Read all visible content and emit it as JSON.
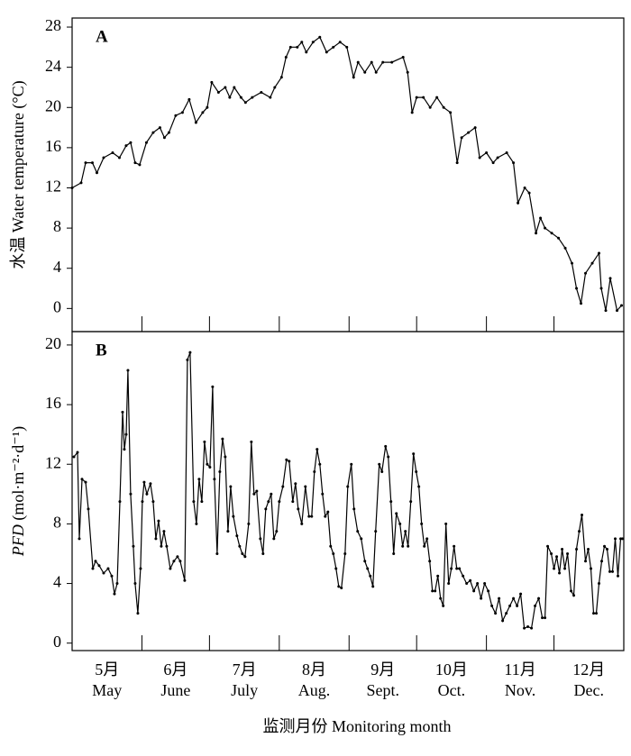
{
  "chart_data": [
    {
      "type": "line",
      "panel": "A",
      "ylabel": "水温 Water temperature (°C)",
      "color": "#000000",
      "xlim": [
        0,
        245
      ],
      "xticks": [
        31,
        61,
        92,
        123,
        153,
        184,
        214
      ],
      "ylim": [
        -2.3,
        28.9
      ],
      "yticks": [
        0,
        4,
        8,
        12,
        16,
        20,
        24,
        28
      ],
      "x": [
        0,
        4,
        6,
        9,
        11,
        14,
        18,
        21,
        24,
        26,
        28,
        30,
        33,
        36,
        39,
        41,
        43,
        46,
        49,
        52,
        55,
        58,
        60,
        62,
        65,
        68,
        70,
        72,
        75,
        77,
        80,
        84,
        88,
        90,
        93,
        95,
        97,
        100,
        102,
        104,
        107,
        110,
        113,
        116,
        119,
        122,
        125,
        127,
        130,
        133,
        135,
        138,
        142,
        147,
        149,
        151,
        153,
        156,
        159,
        162,
        165,
        168,
        171,
        173,
        176,
        179,
        181,
        184,
        187,
        189,
        193,
        196,
        198,
        201,
        203,
        206,
        208,
        210,
        213,
        216,
        219,
        222,
        224,
        226,
        228,
        231,
        234,
        235,
        237,
        239,
        242,
        244
      ],
      "values": [
        12,
        12.5,
        14.5,
        14.5,
        13.5,
        15,
        15.5,
        15,
        16.2,
        16.5,
        14.5,
        14.3,
        16.5,
        17.5,
        18,
        17,
        17.5,
        19.2,
        19.5,
        20.8,
        18.5,
        19.5,
        20,
        22.5,
        21.5,
        22,
        21,
        22,
        21,
        20.5,
        21,
        21.5,
        21,
        22,
        23,
        25,
        26,
        26,
        26.5,
        25.5,
        26.5,
        27,
        25.5,
        26,
        26.5,
        26,
        23,
        24.5,
        23.5,
        24.5,
        23.5,
        24.5,
        24.5,
        25,
        23.5,
        19.5,
        21,
        21,
        20,
        21,
        20,
        19.5,
        14.5,
        17,
        17.5,
        18,
        15,
        15.5,
        14.5,
        15,
        15.5,
        14.5,
        10.5,
        12,
        11.5,
        7.5,
        9,
        8,
        7.5,
        7,
        6,
        4.5,
        2,
        0.5,
        3.5,
        4.5,
        5.5,
        2,
        -0.2,
        3,
        -0.2,
        0.3
      ]
    },
    {
      "type": "line",
      "panel": "B",
      "ylabel_var": "PFD",
      "ylabel_unit": "(mol·m⁻²·d⁻¹)",
      "color": "#000000",
      "xlim": [
        0,
        245
      ],
      "xticks": [
        31,
        61,
        92,
        123,
        153,
        184,
        214
      ],
      "ylim": [
        -0.5,
        20.9
      ],
      "yticks": [
        0,
        4,
        8,
        12,
        16,
        20
      ],
      "month_labels_cn": [
        "5月",
        "6月",
        "7月",
        "8月",
        "9月",
        "10月",
        "11月",
        "12月"
      ],
      "month_labels_en": [
        "May",
        "June",
        "July",
        "Aug.",
        "Sept.",
        "Oct.",
        "Nov.",
        "Dec."
      ],
      "xlabel": "监测月份 Monitoring month",
      "x": [
        0.8,
        2.4,
        3.2,
        4.4,
        6,
        7.2,
        9.2,
        10.4,
        12,
        14,
        16,
        17.6,
        18.8,
        20,
        21.2,
        22.4,
        23.2,
        24,
        24.8,
        26,
        27.2,
        28,
        29.2,
        30.4,
        31.2,
        32,
        33.2,
        34.8,
        36,
        37.2,
        38.4,
        39.6,
        40.8,
        42,
        43.6,
        45.2,
        46.8,
        48,
        50,
        51.2,
        52.4,
        54,
        55.2,
        56.4,
        57.6,
        58.8,
        60,
        61.2,
        62.4,
        63.2,
        64.4,
        65.6,
        66.8,
        68,
        69.2,
        70.4,
        71.6,
        73.2,
        74.4,
        75.6,
        76.8,
        78.4,
        79.6,
        80.8,
        82,
        83.6,
        84.8,
        86,
        87.2,
        88.4,
        89.6,
        90.8,
        92,
        93.6,
        95.2,
        96.4,
        98,
        99.2,
        100.4,
        102,
        103.6,
        105.2,
        106.4,
        107.6,
        108.8,
        110,
        111.2,
        112.4,
        113.6,
        114.8,
        116,
        117.2,
        118.4,
        119.6,
        121.2,
        122.4,
        124,
        125.2,
        126.8,
        128.4,
        130,
        131.2,
        132.4,
        133.6,
        134.8,
        136.4,
        137.6,
        139.2,
        140.4,
        141.6,
        142.8,
        144,
        145.6,
        146.8,
        148,
        149.2,
        150.4,
        151.6,
        152.8,
        154,
        155.2,
        156.4,
        157.6,
        158.8,
        160,
        161.2,
        162.4,
        163.6,
        164.8,
        166,
        167.2,
        168.4,
        169.6,
        170.8,
        172,
        173.6,
        175.2,
        176.8,
        178.4,
        180,
        181.6,
        183.2,
        184.8,
        186.4,
        188,
        189.6,
        191.2,
        192.8,
        194.4,
        196,
        197.6,
        199.2,
        200.8,
        202.4,
        204,
        205.6,
        207.2,
        208.8,
        210,
        211.2,
        212.8,
        214,
        215.2,
        216.4,
        217.6,
        218.8,
        220,
        221.6,
        222.8,
        224,
        225.2,
        226.4,
        228,
        229.2,
        230.4,
        231.6,
        232.8,
        234,
        235.2,
        236.4,
        237.6,
        238.8,
        240,
        241.2,
        242.4,
        243.6,
        244.4
      ],
      "values": [
        12.5,
        12.8,
        7,
        11,
        10.8,
        9,
        5,
        5.5,
        5.2,
        4.7,
        5,
        4.5,
        3.3,
        4,
        9.5,
        15.5,
        13,
        14,
        18.3,
        10,
        6.5,
        4,
        2,
        5,
        9.5,
        10.8,
        10,
        10.7,
        9.5,
        7,
        8.2,
        6.5,
        7.5,
        6.5,
        5,
        5.5,
        5.8,
        5.5,
        4.2,
        19,
        19.5,
        9.5,
        8,
        11,
        9.5,
        13.5,
        12,
        11.8,
        17.2,
        11,
        6,
        11.5,
        13.7,
        12.5,
        7.5,
        10.5,
        8.5,
        7.2,
        6.5,
        6,
        5.8,
        8,
        13.5,
        10,
        10.2,
        7,
        6,
        9,
        9.5,
        10,
        7,
        7.5,
        9.5,
        10.5,
        12.3,
        12.2,
        9.5,
        10.7,
        9,
        8,
        10.5,
        8.5,
        8.5,
        11.5,
        13,
        12,
        10,
        8.5,
        8.8,
        6.5,
        6,
        5,
        3.8,
        3.7,
        6,
        10.5,
        12,
        9,
        7.5,
        7,
        5.5,
        5,
        4.5,
        3.8,
        7.5,
        12,
        11.5,
        13.2,
        12.5,
        9.5,
        6,
        8.7,
        8,
        6.5,
        7.5,
        6.5,
        9.5,
        12.7,
        11.5,
        10.5,
        8,
        6.5,
        7,
        5.5,
        3.5,
        3.5,
        4.5,
        3,
        2.5,
        8,
        4,
        5,
        6.5,
        5,
        5,
        4.5,
        4,
        4.2,
        3.5,
        4,
        3,
        4,
        3.5,
        2.5,
        2,
        3,
        1.5,
        2,
        2.5,
        3,
        2.5,
        3.3,
        1,
        1.1,
        1,
        2.5,
        3,
        1.7,
        1.7,
        6.5,
        6,
        5,
        5.8,
        4.7,
        6.3,
        5,
        6,
        3.5,
        3.2,
        6.3,
        7.5,
        8.6,
        5.5,
        6.3,
        5,
        2,
        2,
        4,
        5.5,
        6.5,
        6.3,
        4.8,
        4.8,
        7,
        4.5,
        7,
        7
      ]
    }
  ]
}
